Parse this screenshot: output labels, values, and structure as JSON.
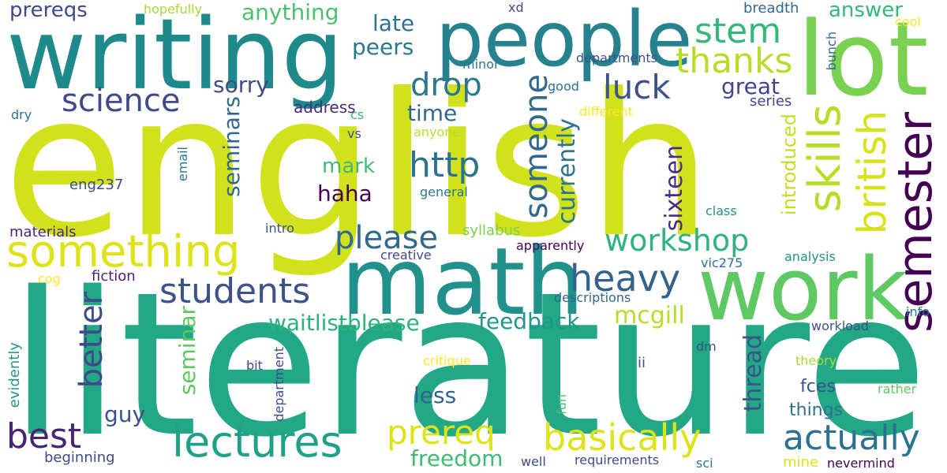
{
  "words": {
    "english": {
      "text": "english",
      "color": "#d1e11c"
    },
    "literature": {
      "text": "literature",
      "color": "#22a884"
    },
    "writing": {
      "text": "writing",
      "color": "#1f8a8c"
    },
    "people": {
      "text": "people",
      "color": "#26828e"
    },
    "lot": {
      "text": "lot",
      "color": "#7ad151"
    },
    "math": {
      "text": "math",
      "color": "#21918c"
    },
    "work": {
      "text": "work",
      "color": "#5ec962"
    },
    "something": {
      "text": "something",
      "color": "#dde318"
    },
    "semester": {
      "text": "semester",
      "color": "#440154"
    },
    "skills": {
      "text": "skills",
      "color": "#b5de2b"
    },
    "british": {
      "text": "british",
      "color": "#d8e219"
    },
    "workshop": {
      "text": "workshop",
      "color": "#2fb47c"
    },
    "lectures": {
      "text": "lectures",
      "color": "#1fa187"
    },
    "basically": {
      "text": "basically",
      "color": "#dde318"
    },
    "actually": {
      "text": "actually",
      "color": "#2c728e"
    },
    "students": {
      "text": "students",
      "color": "#3b528b"
    },
    "heavy": {
      "text": "heavy",
      "color": "#33638d"
    },
    "please": {
      "text": "please",
      "color": "#31688e"
    },
    "science": {
      "text": "science",
      "color": "#3e4a89"
    },
    "thanks": {
      "text": "thanks",
      "color": "#b5de2b"
    },
    "stem": {
      "text": "stem",
      "color": "#35b779"
    },
    "drop": {
      "text": "drop",
      "color": "#2a788e"
    },
    "luck": {
      "text": "luck",
      "color": "#3b528b"
    },
    "http": {
      "text": "http",
      "color": "#2c728e"
    },
    "someone": {
      "text": "someone",
      "color": "#31688e"
    },
    "better": {
      "text": "better",
      "color": "#3e4a89"
    },
    "best": {
      "text": "best",
      "color": "#482475"
    },
    "prereq": {
      "text": "prereq",
      "color": "#dde318"
    },
    "freedom": {
      "text": "freedom",
      "color": "#3fbc73"
    },
    "feedback": {
      "text": "feedback",
      "color": "#1f988b"
    },
    "waitlistblease": {
      "text": "waitlistblease",
      "color": "#2db27d"
    },
    "mcgill": {
      "text": "mcgill",
      "color": "#b5de2b"
    },
    "thread": {
      "text": "thread",
      "color": "#3b528b"
    },
    "sixteen": {
      "text": "sixteen",
      "color": "#472d7b"
    },
    "currently": {
      "text": "currently",
      "color": "#2c728e"
    },
    "introduced": {
      "text": "introduced",
      "color": "#c2df23"
    },
    "anything": {
      "text": "anything",
      "color": "#4ac16d"
    },
    "answer": {
      "text": "answer",
      "color": "#35b779"
    },
    "prereqs": {
      "text": "prereqs",
      "color": "#3e4a89"
    },
    "late": {
      "text": "late",
      "color": "#2c728e"
    },
    "peers": {
      "text": "peers",
      "color": "#2a788e"
    },
    "sorry": {
      "text": "sorry",
      "color": "#3e4a89"
    },
    "time": {
      "text": "time",
      "color": "#31688e"
    },
    "mark": {
      "text": "mark",
      "color": "#3fbc73"
    },
    "haha": {
      "text": "haha",
      "color": "#440154"
    },
    "great": {
      "text": "great",
      "color": "#414487"
    },
    "seminars": {
      "text": "seminars",
      "color": "#31688e"
    },
    "seminar": {
      "text": "seminar",
      "color": "#5ec962"
    },
    "less": {
      "text": "less",
      "color": "#33638d"
    },
    "guy": {
      "text": "guy",
      "color": "#3b528b"
    },
    "fces": {
      "text": "fces",
      "color": "#3b528b"
    },
    "things": {
      "text": "things",
      "color": "#2c728e"
    },
    "breadth": {
      "text": "breadth",
      "color": "#31688e"
    },
    "hopefully": {
      "text": "hopefully",
      "color": "#a5db36"
    },
    "xd": {
      "text": "xd",
      "color": "#3e4a89"
    },
    "cool": {
      "text": "cool",
      "color": "#fde725"
    },
    "minor": {
      "text": "minor",
      "color": "#2a788e"
    },
    "departments": {
      "text": "departments",
      "color": "#3b528b"
    },
    "bunch": {
      "text": "bunch",
      "color": "#31688e"
    },
    "good": {
      "text": "good",
      "color": "#2c728e"
    },
    "address": {
      "text": "address",
      "color": "#472d7b"
    },
    "series": {
      "text": "series",
      "color": "#414487"
    },
    "different": {
      "text": "different",
      "color": "#fde725"
    },
    "dry": {
      "text": "dry",
      "color": "#2c728e"
    },
    "cs": {
      "text": "cs",
      "color": "#2fb47c"
    },
    "anyone": {
      "text": "anyone",
      "color": "#b5de2b"
    },
    "vs": {
      "text": "vs",
      "color": "#3b528b"
    },
    "email": {
      "text": "email",
      "color": "#2a788e"
    },
    "eng237": {
      "text": "eng237",
      "color": "#3e4a89"
    },
    "general": {
      "text": "general",
      "color": "#2a788e"
    },
    "class": {
      "text": "class",
      "color": "#21918c"
    },
    "materials": {
      "text": "materials",
      "color": "#482878"
    },
    "intro": {
      "text": "intro",
      "color": "#3b528b"
    },
    "syllabus": {
      "text": "syllabus",
      "color": "#7ad151"
    },
    "apparently": {
      "text": "apparently",
      "color": "#440154"
    },
    "vic275": {
      "text": "vic275",
      "color": "#2c728e"
    },
    "cog": {
      "text": "cog",
      "color": "#fde725"
    },
    "creative": {
      "text": "creative",
      "color": "#3e4a89"
    },
    "analysis": {
      "text": "analysis",
      "color": "#21918c"
    },
    "fiction": {
      "text": "fiction",
      "color": "#482475"
    },
    "descriptions": {
      "text": "descriptions",
      "color": "#31688e"
    },
    "info": {
      "text": "info",
      "color": "#2a788e"
    },
    "workload": {
      "text": "workload",
      "color": "#3b528b"
    },
    "dm": {
      "text": "dm",
      "color": "#3b528b"
    },
    "department": {
      "text": "department",
      "color": "#3e4a89"
    },
    "evidently": {
      "text": "evidently",
      "color": "#1f988b"
    },
    "bit": {
      "text": "bit",
      "color": "#3e4a89"
    },
    "critique": {
      "text": "critique",
      "color": "#fde725"
    },
    "ii": {
      "text": "ii",
      "color": "#3b528b"
    },
    "theory": {
      "text": "theory",
      "color": "#a5db36"
    },
    "rather": {
      "text": "rather",
      "color": "#5ec962"
    },
    "fun": {
      "text": "fun",
      "color": "#4ac16d"
    },
    "beginning": {
      "text": "beginning",
      "color": "#3e4a89"
    },
    "well": {
      "text": "well",
      "color": "#3e4a89"
    },
    "requirements": {
      "text": "requirements",
      "color": "#3e4a89"
    },
    "sci": {
      "text": "sci",
      "color": "#2a788e"
    },
    "mine": {
      "text": "mine",
      "color": "#dde318"
    },
    "nevermind": {
      "text": "nevermind",
      "color": "#440154"
    }
  }
}
